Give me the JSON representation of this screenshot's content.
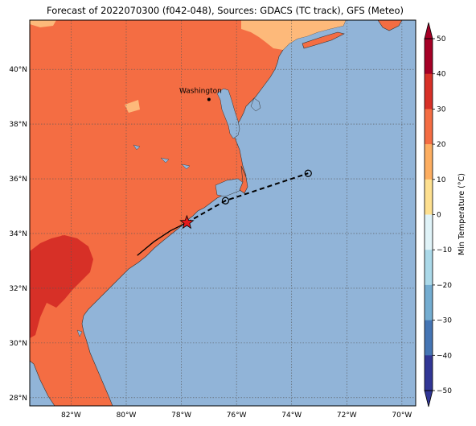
{
  "title": "Forecast of 2022070300 (f042-048), Sources: GDACS (TC track), GFS (Meteo)",
  "map": {
    "lon_range": [
      -83.5,
      -69.5
    ],
    "lat_range": [
      27.7,
      41.8
    ],
    "lon_ticks": [
      {
        "value": -82,
        "label": "82°W"
      },
      {
        "value": -80,
        "label": "80°W"
      },
      {
        "value": -78,
        "label": "78°W"
      },
      {
        "value": -76,
        "label": "76°W"
      },
      {
        "value": -74,
        "label": "74°W"
      },
      {
        "value": -72,
        "label": "72°W"
      },
      {
        "value": -70,
        "label": "70°W"
      }
    ],
    "lat_ticks": [
      {
        "value": 28,
        "label": "28°N"
      },
      {
        "value": 30,
        "label": "30°N"
      },
      {
        "value": 32,
        "label": "32°N"
      },
      {
        "value": 34,
        "label": "34°N"
      },
      {
        "value": 36,
        "label": "36°N"
      },
      {
        "value": 38,
        "label": "38°N"
      },
      {
        "value": 40,
        "label": "40°N"
      }
    ],
    "grid": true,
    "city": {
      "name": "Washington",
      "lon": -77.0,
      "lat": 38.9
    },
    "track_observed": {
      "style": "solid",
      "color": "#000000",
      "points": [
        [
          -79.6,
          33.2
        ],
        [
          -79.0,
          33.7
        ],
        [
          -78.4,
          34.1
        ],
        [
          -77.8,
          34.4
        ]
      ]
    },
    "track_forecast": {
      "style": "dashed",
      "color": "#000000",
      "points": [
        [
          -77.8,
          34.4
        ],
        [
          -76.4,
          35.2
        ],
        [
          -73.4,
          36.2
        ]
      ]
    },
    "current_position": {
      "lon": -77.8,
      "lat": 34.4,
      "marker": "star",
      "color": "#e31a1c"
    },
    "forecast_positions": [
      {
        "lon": -76.4,
        "lat": 35.2,
        "marker": "circle"
      },
      {
        "lon": -73.4,
        "lat": 36.2,
        "marker": "circle"
      }
    ],
    "colors": {
      "ocean": "#91b4d8",
      "land_20_30": "#f46d43",
      "land_30_40": "#d73027",
      "land_10_20": "#fdb97a"
    }
  },
  "colorbar": {
    "label": "Min Temperature (°C)",
    "ticks": [
      "50",
      "40",
      "30",
      "20",
      "10",
      "0",
      "−10",
      "−20",
      "−30",
      "−40",
      "−50"
    ],
    "min": -50,
    "max": 50,
    "step": 10,
    "segments": [
      "#a50026",
      "#d73027",
      "#f46d43",
      "#fdae61",
      "#fee090",
      "#e0f3f8",
      "#abd9e9",
      "#74add1",
      "#4575b4",
      "#313695"
    ],
    "extend": "both"
  }
}
